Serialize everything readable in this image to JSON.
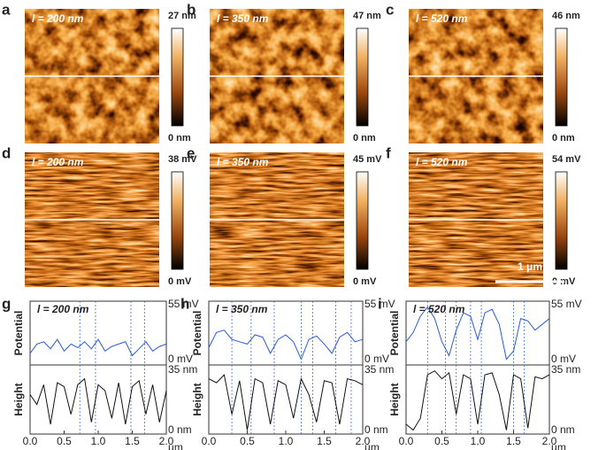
{
  "panels": [
    {
      "letter": "a",
      "label": "l = 200 nm",
      "max": "27 nm",
      "min": "0 nm"
    },
    {
      "letter": "b",
      "label": "l = 350 nm",
      "max": "47 nm",
      "min": "0 nm"
    },
    {
      "letter": "c",
      "label": "l = 520 nm",
      "max": "46 nm",
      "min": "0 nm"
    },
    {
      "letter": "d",
      "label": "l = 200 nm",
      "max": "38 mV",
      "min": "0 mV"
    },
    {
      "letter": "e",
      "label": "l = 350 nm",
      "max": "45 mV",
      "min": "0 mV"
    },
    {
      "letter": "f",
      "label": "l = 520 nm",
      "max": "54 mV",
      "min": "0 mV",
      "scalebar": "1 μm"
    }
  ],
  "chart_data": [
    {
      "type": "line",
      "panel": "g",
      "title": "l = 200 nm",
      "ylabel": "Potential",
      "y2label": "Height",
      "x_unit": "µm",
      "x": [
        0,
        0.1,
        0.2,
        0.3,
        0.4,
        0.5,
        0.6,
        0.7,
        0.8,
        0.9,
        1.0,
        1.1,
        1.2,
        1.3,
        1.4,
        1.5,
        1.6,
        1.7,
        1.8,
        1.9,
        2.0
      ],
      "xlim": [
        0,
        2
      ],
      "xticks": [
        {
          "value": 0,
          "label": "0.0"
        },
        {
          "value": 0.5,
          "label": "0.5"
        },
        {
          "value": 1,
          "label": "1.0"
        },
        {
          "value": 1.5,
          "label": "1.5"
        },
        {
          "value": 2,
          "label": "2.0"
        }
      ],
      "ylim": [
        0,
        55
      ],
      "yticks": [
        {
          "value": 0,
          "label": "0 mV"
        },
        {
          "value": 55,
          "label": "55 mV"
        }
      ],
      "y2lim": [
        0,
        35
      ],
      "y2ticks": [
        {
          "value": 0,
          "label": "0 nm"
        },
        {
          "value": 35,
          "label": "35 nm"
        }
      ],
      "guides": [
        0.73,
        0.96,
        1.48,
        1.68
      ],
      "series": [
        {
          "color": "#2a5bd7",
          "values": [
            10,
            18,
            20,
            14,
            22,
            12,
            18,
            15,
            20,
            14,
            22,
            12,
            16,
            18,
            20,
            8,
            14,
            20,
            12,
            16,
            18
          ]
        },
        {
          "color": "#111111",
          "axis": "y2",
          "values": [
            20,
            15,
            25,
            5,
            26,
            24,
            10,
            25,
            28,
            6,
            25,
            22,
            8,
            26,
            5,
            24,
            27,
            10,
            25,
            6,
            22
          ]
        }
      ]
    },
    {
      "type": "line",
      "panel": "h",
      "title": "l = 350 nm",
      "ylabel": "Potential",
      "y2label": "Height",
      "x_unit": "µm",
      "x": [
        0,
        0.1,
        0.2,
        0.3,
        0.4,
        0.5,
        0.6,
        0.7,
        0.8,
        0.9,
        1.0,
        1.1,
        1.2,
        1.3,
        1.4,
        1.5,
        1.6,
        1.7,
        1.8,
        1.9,
        2.0
      ],
      "xlim": [
        0,
        2
      ],
      "xticks": [
        {
          "value": 0,
          "label": "0.0"
        },
        {
          "value": 0.5,
          "label": "0.5"
        },
        {
          "value": 1,
          "label": "1.0"
        },
        {
          "value": 1.5,
          "label": "1.5"
        },
        {
          "value": 2,
          "label": "2.0"
        }
      ],
      "ylim": [
        0,
        55
      ],
      "yticks": [
        {
          "value": 0,
          "label": "0 mV"
        },
        {
          "value": 55,
          "label": "55 mV"
        }
      ],
      "y2lim": [
        0,
        35
      ],
      "y2ticks": [
        {
          "value": 0,
          "label": "0 nm"
        },
        {
          "value": 35,
          "label": "35 nm"
        }
      ],
      "guides": [
        0.3,
        0.55,
        0.85,
        1.2,
        1.35,
        1.65,
        1.85
      ],
      "series": [
        {
          "color": "#2a5bd7",
          "values": [
            15,
            28,
            30,
            22,
            20,
            18,
            26,
            24,
            10,
            22,
            26,
            20,
            5,
            22,
            25,
            18,
            10,
            24,
            28,
            20,
            22
          ]
        },
        {
          "color": "#111111",
          "axis": "y2",
          "values": [
            28,
            26,
            30,
            10,
            27,
            2,
            28,
            26,
            5,
            27,
            25,
            8,
            28,
            20,
            6,
            27,
            26,
            5,
            28,
            27,
            25
          ]
        }
      ]
    },
    {
      "type": "line",
      "panel": "i",
      "title": "l = 520 nm",
      "ylabel": "Potential",
      "y2label": "Height",
      "x_unit": "µm",
      "x": [
        0,
        0.1,
        0.2,
        0.3,
        0.4,
        0.5,
        0.6,
        0.7,
        0.8,
        0.9,
        1.0,
        1.1,
        1.2,
        1.3,
        1.4,
        1.5,
        1.6,
        1.7,
        1.8,
        1.9,
        2.0
      ],
      "xlim": [
        0,
        2
      ],
      "xticks": [
        {
          "value": 0,
          "label": "0.0"
        },
        {
          "value": 0.5,
          "label": "0.5"
        },
        {
          "value": 1,
          "label": "1.0"
        },
        {
          "value": 1.5,
          "label": "1.5"
        },
        {
          "value": 2,
          "label": "2.0"
        }
      ],
      "ylim": [
        0,
        55
      ],
      "yticks": [
        {
          "value": 0,
          "label": "0 mV"
        },
        {
          "value": 55,
          "label": "55 mV"
        }
      ],
      "y2lim": [
        0,
        35
      ],
      "y2ticks": [
        {
          "value": 0,
          "label": "0 nm"
        },
        {
          "value": 35,
          "label": "35 nm"
        }
      ],
      "guides": [
        0.3,
        0.55,
        0.7,
        0.9,
        1.05,
        1.5,
        1.65
      ],
      "series": [
        {
          "color": "#2a5bd7",
          "values": [
            20,
            28,
            42,
            50,
            40,
            20,
            8,
            30,
            45,
            42,
            22,
            45,
            48,
            35,
            5,
            12,
            40,
            38,
            30,
            35,
            40
          ]
        },
        {
          "color": "#111111",
          "axis": "y2",
          "values": [
            5,
            2,
            8,
            30,
            32,
            28,
            31,
            10,
            30,
            28,
            5,
            30,
            31,
            20,
            2,
            30,
            28,
            3,
            29,
            28,
            30
          ]
        }
      ]
    }
  ]
}
